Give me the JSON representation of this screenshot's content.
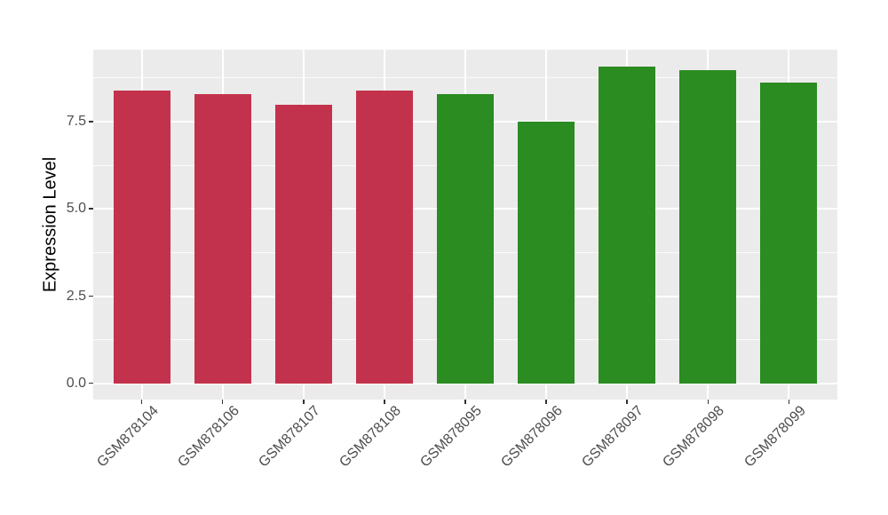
{
  "figure": {
    "background": "#FFFFFF"
  },
  "chart_data": {
    "type": "bar",
    "title": "",
    "xlabel": "",
    "ylabel": "Expression Level",
    "categories": [
      "GSM878104",
      "GSM878106",
      "GSM878107",
      "GSM878108",
      "GSM878095",
      "GSM878096",
      "GSM878097",
      "GSM878098",
      "GSM878099"
    ],
    "values": [
      8.38,
      8.29,
      7.98,
      8.38,
      8.29,
      7.5,
      9.08,
      8.97,
      8.61
    ],
    "bar_colors": [
      "#C3324C",
      "#C3324C",
      "#C3324C",
      "#C3324C",
      "#2A8C21",
      "#2A8C21",
      "#2A8C21",
      "#2A8C21",
      "#2A8C21"
    ],
    "group_colors": {
      "red_group": "#C3324C",
      "green_group": "#2A8C21"
    },
    "y_ticks": [
      0.0,
      2.5,
      5.0,
      7.5
    ],
    "y_tick_labels": [
      "0.0",
      "2.5",
      "5.0",
      "7.5"
    ],
    "y_minor_gridlines": [
      1.25,
      3.75,
      6.25,
      8.75
    ],
    "ylim": [
      -0.46,
      9.56
    ],
    "grid": true,
    "legend_position": "none",
    "x_label_angle_deg": 45,
    "theme": {
      "panel_background": "#EBEBEB",
      "gridline_color": "#FFFFFF",
      "axis_text_color": "#4D4D4D",
      "axis_title_color": "#000000",
      "tick_mark_color": "#333333",
      "bar_width_fraction": 0.7
    }
  }
}
